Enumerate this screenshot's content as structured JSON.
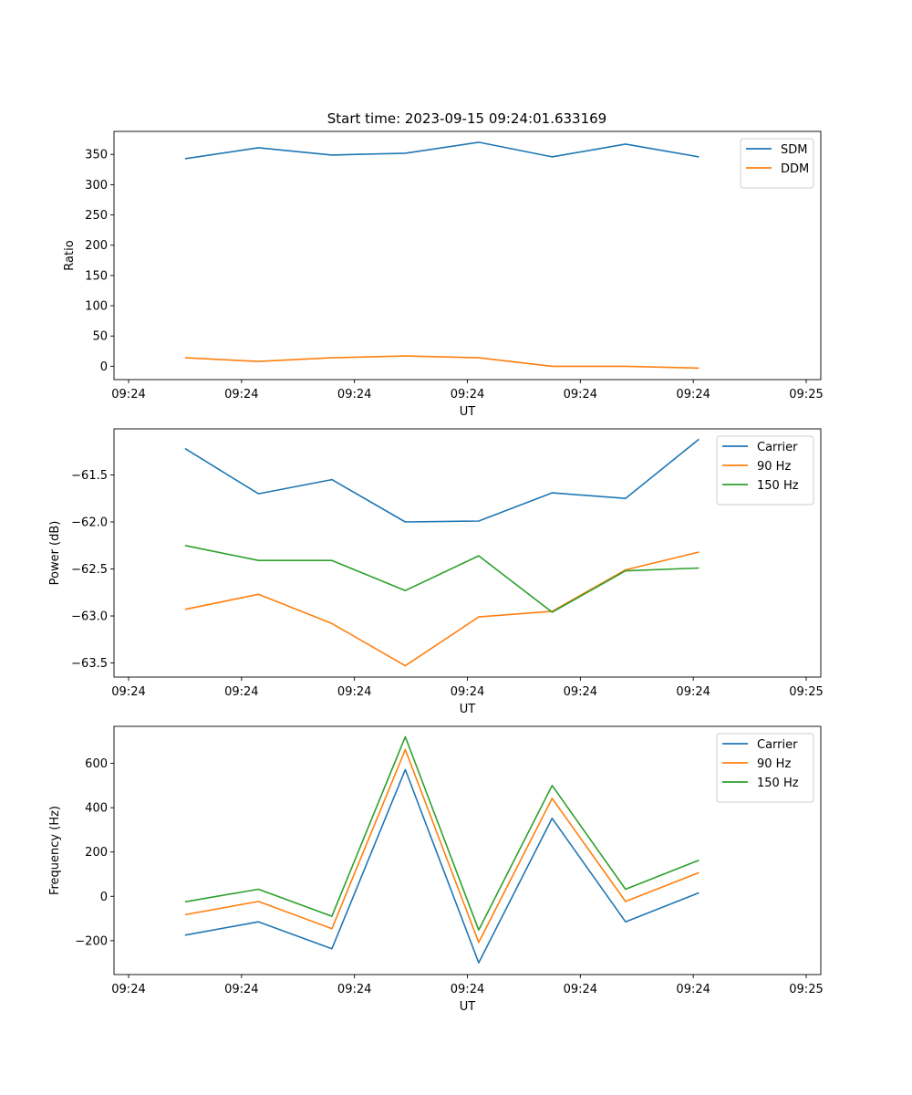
{
  "figure_title": "Start time: 2023-09-15 09:24:01.633169",
  "chart_data": [
    {
      "type": "line",
      "title": "Start time: 2023-09-15 09:24:01.633169",
      "xlabel": "UT",
      "ylabel": "Ratio",
      "x_tick_labels": [
        "09:24",
        "09:24",
        "09:24",
        "09:24",
        "09:24",
        "09:24",
        "09:25"
      ],
      "y_ticks": [
        0,
        50,
        100,
        150,
        200,
        250,
        300,
        350
      ],
      "y_tick_labels": [
        "0",
        "50",
        "100",
        "150",
        "200",
        "250",
        "300",
        "350"
      ],
      "ylim": [
        -22,
        388
      ],
      "x_sample_positions": [
        0.5,
        1.15,
        1.8,
        2.45,
        3.1,
        3.75,
        4.4,
        5.05
      ],
      "xlim": [
        0,
        6
      ],
      "legend_position": "top-right",
      "series": [
        {
          "name": "SDM",
          "color": "#1f77b4",
          "values": [
            343,
            361,
            349,
            352,
            370,
            346,
            367,
            346
          ]
        },
        {
          "name": "DDM",
          "color": "#ff7f0e",
          "values": [
            14,
            8,
            14,
            17,
            14,
            0,
            0,
            -3
          ]
        }
      ]
    },
    {
      "type": "line",
      "title": "",
      "xlabel": "UT",
      "ylabel": "Power (dB)",
      "x_tick_labels": [
        "09:24",
        "09:24",
        "09:24",
        "09:24",
        "09:24",
        "09:24",
        "09:25"
      ],
      "y_ticks": [
        -63.5,
        -63.0,
        -62.5,
        -62.0,
        -61.5
      ],
      "y_tick_labels": [
        "−63.5",
        "−63.0",
        "−62.5",
        "−62.0",
        "−61.5"
      ],
      "ylim": [
        -63.65,
        -61.01
      ],
      "x_sample_positions": [
        0.5,
        1.15,
        1.8,
        2.45,
        3.1,
        3.75,
        4.4,
        5.05
      ],
      "xlim": [
        0,
        6
      ],
      "legend_position": "top-right",
      "series": [
        {
          "name": "Carrier",
          "color": "#1f77b4",
          "values": [
            -61.22,
            -61.7,
            -61.55,
            -62.0,
            -61.99,
            -61.69,
            -61.75,
            -61.12
          ]
        },
        {
          "name": "90 Hz",
          "color": "#ff7f0e",
          "values": [
            -62.93,
            -62.77,
            -63.08,
            -63.53,
            -63.01,
            -62.95,
            -62.51,
            -62.32
          ]
        },
        {
          "name": "150 Hz",
          "color": "#2ca02c",
          "values": [
            -62.25,
            -62.41,
            -62.41,
            -62.73,
            -62.36,
            -62.96,
            -62.52,
            -62.49
          ]
        }
      ]
    },
    {
      "type": "line",
      "title": "",
      "xlabel": "UT",
      "ylabel": "Frequency (Hz)",
      "x_tick_labels": [
        "09:24",
        "09:24",
        "09:24",
        "09:24",
        "09:24",
        "09:24",
        "09:25"
      ],
      "y_ticks": [
        -200,
        0,
        200,
        400,
        600
      ],
      "y_tick_labels": [
        "−200",
        "0",
        "200",
        "400",
        "600"
      ],
      "ylim": [
        -353,
        767
      ],
      "x_sample_positions": [
        0.5,
        1.15,
        1.8,
        2.45,
        3.1,
        3.75,
        4.4,
        5.05
      ],
      "xlim": [
        0,
        6
      ],
      "legend_position": "top-right",
      "series": [
        {
          "name": "Carrier",
          "color": "#1f77b4",
          "values": [
            -175,
            -115,
            -237,
            572,
            -300,
            352,
            -115,
            16
          ]
        },
        {
          "name": "90 Hz",
          "color": "#ff7f0e",
          "values": [
            -83,
            -23,
            -146,
            662,
            -208,
            442,
            -23,
            107
          ]
        },
        {
          "name": "150 Hz",
          "color": "#2ca02c",
          "values": [
            -25,
            32,
            -90,
            720,
            -152,
            500,
            32,
            163
          ]
        }
      ]
    }
  ]
}
